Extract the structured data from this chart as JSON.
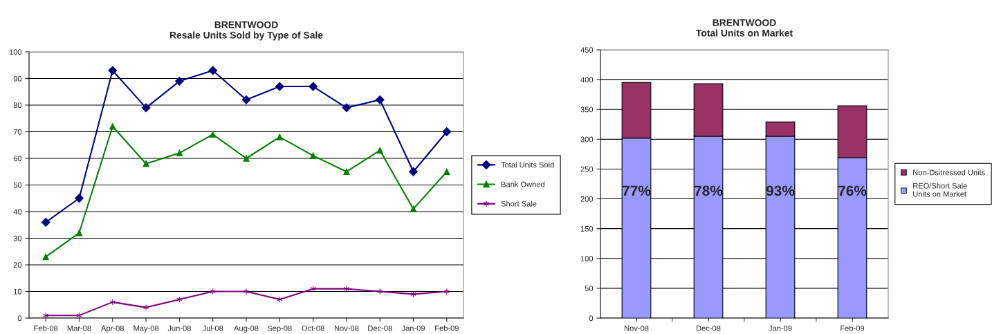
{
  "chart_data": [
    {
      "type": "line",
      "title": "BRENTWOOD\nResale Units Sold by Type of Sale",
      "categories": [
        "Feb-08",
        "Mar-08",
        "Apr-08",
        "May-08",
        "Jun-08",
        "Jul-08",
        "Aug-08",
        "Sep-08",
        "Oct-08",
        "Nov-08",
        "Dec-08",
        "Jan-09",
        "Feb-09"
      ],
      "series": [
        {
          "name": "Total Units Sold",
          "color": "#000080",
          "marker": "diamond",
          "values": [
            36,
            45,
            93,
            79,
            89,
            93,
            82,
            87,
            87,
            79,
            82,
            55,
            70
          ]
        },
        {
          "name": "Bank Owned",
          "color": "#008000",
          "marker": "triangle",
          "values": [
            23,
            32,
            72,
            58,
            62,
            69,
            60,
            68,
            61,
            55,
            63,
            41,
            55
          ]
        },
        {
          "name": "Short Sale",
          "color": "#800080",
          "marker": "cross",
          "values": [
            1,
            1,
            6,
            4,
            7,
            10,
            10,
            7,
            11,
            11,
            10,
            9,
            10
          ]
        }
      ],
      "ylim": [
        0,
        100
      ],
      "yticks": [
        0,
        10,
        20,
        30,
        40,
        50,
        60,
        70,
        80,
        90,
        100
      ],
      "grid": "y",
      "legend": "right",
      "line_style": "solid"
    },
    {
      "type": "bar",
      "title": "BRENTWOOD\nTotal Units on Market",
      "stacked": true,
      "categories": [
        "Nov-08",
        "Dec-08",
        "Jan-09",
        "Feb-09"
      ],
      "series": [
        {
          "name": "REO/Short Sale\nUnits on Market",
          "color": "#9999ff",
          "values": [
            302,
            305,
            305,
            269
          ]
        },
        {
          "name": "Non-Dsitressed Units",
          "color": "#993366",
          "values": [
            93,
            88,
            24,
            87
          ]
        }
      ],
      "annotations": [
        "77%",
        "78%",
        "93%",
        "76%"
      ],
      "ylim": [
        0,
        450
      ],
      "yticks": [
        0,
        50,
        100,
        150,
        200,
        250,
        300,
        350,
        400,
        450
      ],
      "grid": "y",
      "legend": "right"
    }
  ]
}
